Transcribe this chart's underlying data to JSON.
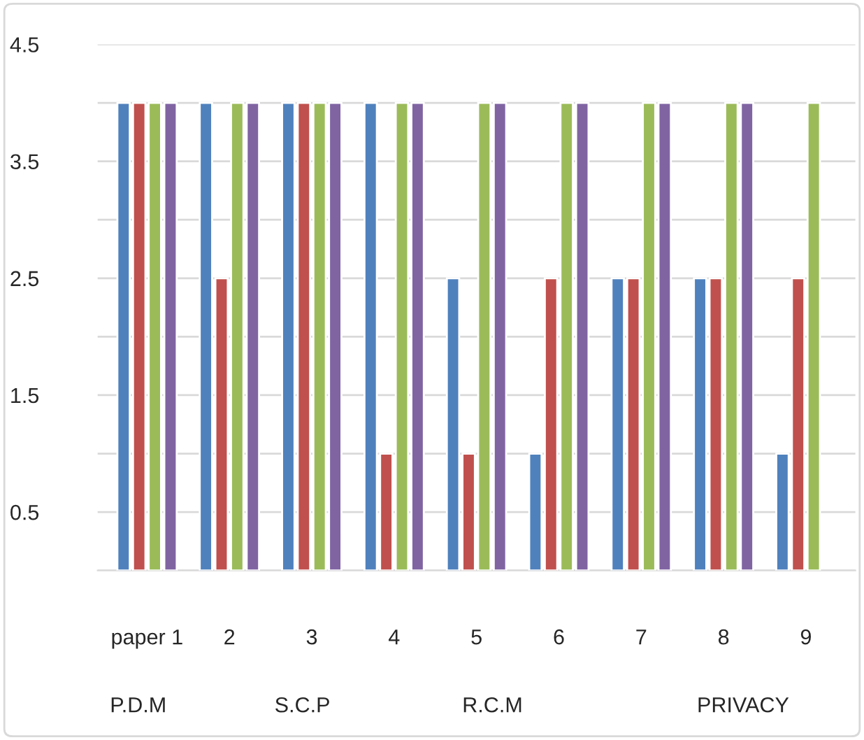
{
  "chart_data": {
    "type": "bar",
    "categories": [
      "paper 1",
      "2",
      "3",
      "4",
      "5",
      "6",
      "7",
      "8",
      "9"
    ],
    "series": [
      {
        "color": "#4f81bd",
        "values": [
          4,
          4,
          4,
          4,
          2.5,
          1,
          2.5,
          2.5,
          1
        ]
      },
      {
        "color": "#c0504d",
        "values": [
          4,
          2.5,
          4,
          1,
          1,
          2.5,
          2.5,
          2.5,
          2.5
        ]
      },
      {
        "color": "#9bbb59",
        "values": [
          4,
          4,
          4,
          4,
          4,
          4,
          4,
          4,
          4
        ]
      },
      {
        "color": "#8064a2",
        "values": [
          4,
          4,
          4,
          4,
          4,
          4,
          4,
          4,
          null
        ]
      }
    ],
    "ylim": [
      0,
      4.5
    ],
    "yticks": [
      {
        "value": 0,
        "label": null
      },
      0.5,
      {
        "value": 1,
        "label": null
      },
      1.5,
      {
        "value": 2,
        "label": null
      },
      2.5,
      {
        "value": 3,
        "label": null
      },
      3.5,
      {
        "value": 4,
        "label": null
      },
      4.5
    ],
    "grid": "y",
    "annotations": [
      "P.D.M",
      "S.C.P",
      "R.C.M",
      "PRIVACY"
    ]
  }
}
